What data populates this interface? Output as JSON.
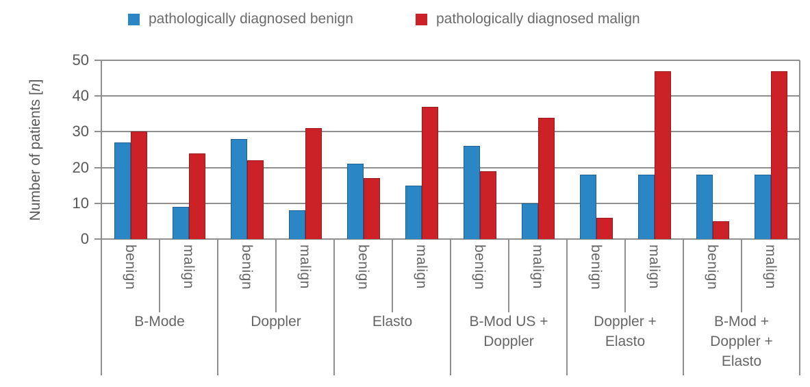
{
  "chart_data": {
    "type": "bar",
    "title": "",
    "ylabel": "Number of patients [n]",
    "ylim": [
      0,
      50
    ],
    "yticks": [
      0,
      10,
      20,
      30,
      40,
      50
    ],
    "grid": true,
    "legend_position": "top",
    "series": [
      {
        "id": "diagnosed-benign",
        "name": "pathologically diagnosed benign",
        "color": "#2b86c6",
        "border_color": "#1c6096"
      },
      {
        "id": "diagnosed-malign",
        "name": "pathologically diagnosed malign",
        "color": "#cb2127",
        "border_color": "#99181d"
      }
    ],
    "subcategory_labels": [
      "benign",
      "malign"
    ],
    "groups": [
      {
        "label": "B-Mode",
        "label_lines": [
          "B-Mode"
        ],
        "cells": [
          {
            "label": "benign",
            "values": [
              27,
              30
            ]
          },
          {
            "label": "malign",
            "values": [
              9,
              24
            ]
          }
        ]
      },
      {
        "label": "Doppler",
        "label_lines": [
          "Doppler"
        ],
        "cells": [
          {
            "label": "benign",
            "values": [
              28,
              22
            ]
          },
          {
            "label": "malign",
            "values": [
              8,
              31
            ]
          }
        ]
      },
      {
        "label": "Elasto",
        "label_lines": [
          "Elasto"
        ],
        "cells": [
          {
            "label": "benign",
            "values": [
              21,
              17
            ]
          },
          {
            "label": "malign",
            "values": [
              15,
              37
            ]
          }
        ]
      },
      {
        "label": "B-Mod US + Doppler",
        "label_lines": [
          "B-Mod US +",
          "Doppler"
        ],
        "cells": [
          {
            "label": "benign",
            "values": [
              26,
              19
            ]
          },
          {
            "label": "malign",
            "values": [
              10,
              34
            ]
          }
        ]
      },
      {
        "label": "Doppler + Elasto",
        "label_lines": [
          "Doppler +",
          "Elasto"
        ],
        "cells": [
          {
            "label": "benign",
            "values": [
              18,
              6
            ]
          },
          {
            "label": "malign",
            "values": [
              18,
              47
            ]
          }
        ]
      },
      {
        "label": "B-Mod + Doppler + Elasto",
        "label_lines": [
          "B-Mod +",
          "Doppler +",
          "Elasto"
        ],
        "cells": [
          {
            "label": "benign",
            "values": [
              18,
              5
            ]
          },
          {
            "label": "malign",
            "values": [
              18,
              47
            ]
          }
        ]
      }
    ]
  }
}
